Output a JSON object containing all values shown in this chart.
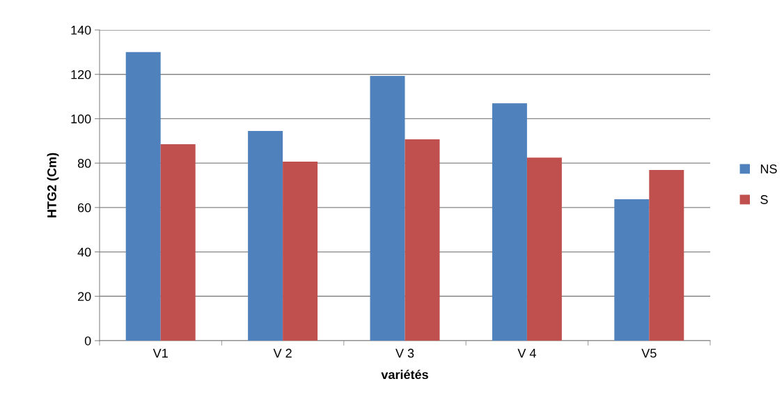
{
  "chart_data": {
    "type": "bar",
    "xlabel": "variétés",
    "ylabel": "HTG2 (Cm)",
    "categories": [
      "V1",
      "V 2",
      "V 3",
      "V 4",
      "V5"
    ],
    "series": [
      {
        "name": "NS",
        "color": "#4f81bd",
        "values": [
          130,
          94.5,
          119.3,
          107,
          63.7
        ]
      },
      {
        "name": "S",
        "color": "#c0504d",
        "values": [
          88.5,
          80.7,
          90.7,
          82.5,
          76.9
        ]
      }
    ],
    "ylim": [
      0,
      140
    ],
    "yticks": [
      0,
      20,
      40,
      60,
      80,
      100,
      120,
      140
    ],
    "grid": "y",
    "legend": "right"
  }
}
